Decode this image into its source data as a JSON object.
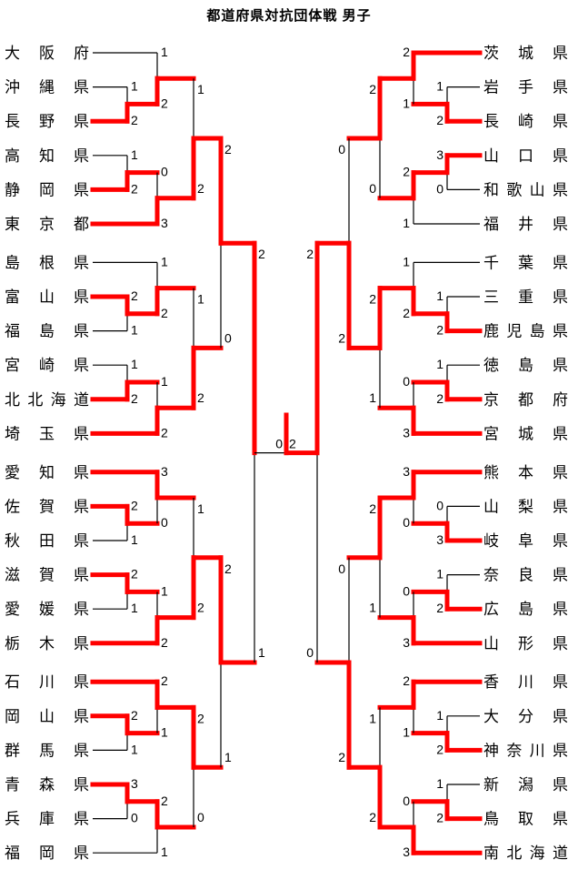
{
  "title": "都道府県対抗団体戦 男子",
  "colors": {
    "winner_path": "#ff0000",
    "line": "#000000",
    "text": "#000000",
    "background": "#ffffff"
  },
  "chart_data": {
    "type": "tournament_bracket",
    "title": "都道府県対抗団体戦 男子",
    "champion": "鹿児島県",
    "final": {
      "left_team": "東京都",
      "right_team": "鹿児島県",
      "scores": [
        0,
        2
      ]
    },
    "semifinals": {
      "left": {
        "top_team": "東京都",
        "bottom_team": "栃木県",
        "scores": [
          2,
          1
        ]
      },
      "right": {
        "top_team": "鹿児島県",
        "bottom_team": "南北海道",
        "scores": [
          2,
          0
        ]
      }
    },
    "sides": {
      "left": {
        "quarterfinals": [
          {
            "top_team": "東京都",
            "bottom_team": "埼玉県",
            "scores": [
              2,
              0
            ]
          },
          {
            "top_team": "栃木県",
            "bottom_team": "石川県",
            "scores": [
              2,
              1
            ]
          }
        ],
        "groups": [
          {
            "teams": [
              "大阪府",
              "沖縄県",
              "長野県",
              "高知県",
              "静岡県",
              "東京都"
            ],
            "m_bc": [
              1,
              2
            ],
            "m_a": [
              1,
              2
            ],
            "m_de": [
              1,
              2
            ],
            "m_f": [
              0,
              3
            ],
            "m_final": [
              1,
              2
            ]
          },
          {
            "teams": [
              "島根県",
              "富山県",
              "福島県",
              "宮崎県",
              "北北海道",
              "埼玉県"
            ],
            "m_bc": [
              2,
              1
            ],
            "m_a": [
              1,
              2
            ],
            "m_de": [
              1,
              2
            ],
            "m_f": [
              1,
              2
            ],
            "m_final": [
              1,
              2
            ]
          },
          {
            "teams": [
              "愛知県",
              "佐賀県",
              "秋田県",
              "滋賀県",
              "愛媛県",
              "栃木県"
            ],
            "m_bc": [
              2,
              1
            ],
            "m_a": [
              3,
              0
            ],
            "m_de": [
              2,
              1
            ],
            "m_f": [
              1,
              2
            ],
            "m_final": [
              1,
              2
            ]
          },
          {
            "teams": [
              "石川県",
              "岡山県",
              "群馬県",
              "青森県",
              "兵庫県",
              "福岡県"
            ],
            "m_bc": [
              2,
              1
            ],
            "m_a": [
              2,
              1
            ],
            "m_de": [
              3,
              0
            ],
            "m_f": [
              2,
              1
            ],
            "m_final": [
              2,
              0
            ]
          }
        ]
      },
      "right": {
        "quarterfinals": [
          {
            "top_team": "茨城県",
            "bottom_team": "鹿児島県",
            "scores": [
              0,
              2
            ]
          },
          {
            "top_team": "熊本県",
            "bottom_team": "南北海道",
            "scores": [
              0,
              2
            ]
          }
        ],
        "groups": [
          {
            "teams": [
              "茨城県",
              "岩手県",
              "長崎県",
              "山口県",
              "和歌山県",
              "福井県"
            ],
            "m_bc": [
              1,
              2
            ],
            "m_a": [
              2,
              1
            ],
            "m_de": [
              3,
              0
            ],
            "m_f": [
              2,
              1
            ],
            "m_final": [
              2,
              0
            ]
          },
          {
            "teams": [
              "千葉県",
              "三重県",
              "鹿児島県",
              "徳島県",
              "京都府",
              "宮城県"
            ],
            "m_bc": [
              1,
              2
            ],
            "m_a": [
              1,
              2
            ],
            "m_de": [
              1,
              2
            ],
            "m_f": [
              0,
              3
            ],
            "m_final": [
              2,
              1
            ]
          },
          {
            "teams": [
              "熊本県",
              "山梨県",
              "岐阜県",
              "奈良県",
              "広島県",
              "山形県"
            ],
            "m_bc": [
              0,
              3
            ],
            "m_a": [
              3,
              0
            ],
            "m_de": [
              1,
              2
            ],
            "m_f": [
              0,
              3
            ],
            "m_final": [
              2,
              1
            ]
          },
          {
            "teams": [
              "香川県",
              "大分県",
              "神奈川県",
              "新潟県",
              "鳥取県",
              "南北海道"
            ],
            "m_bc": [
              1,
              2
            ],
            "m_a": [
              2,
              1
            ],
            "m_de": [
              1,
              2
            ],
            "m_f": [
              0,
              3
            ],
            "m_final": [
              1,
              2
            ]
          }
        ]
      }
    }
  }
}
